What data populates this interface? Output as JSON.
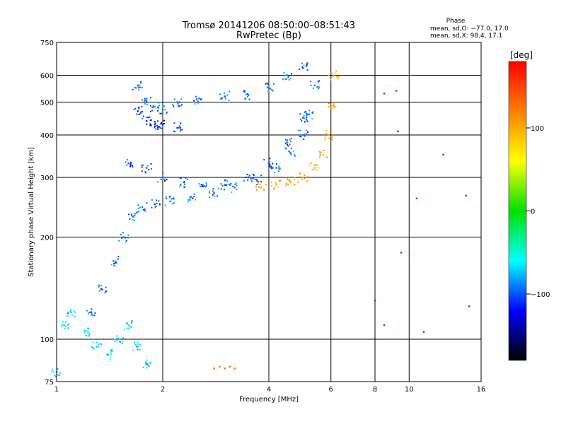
{
  "chart_data": {
    "type": "scatter",
    "title": "Tromsø 20141206 08:50:00–08:51:43",
    "subtitle": "RwPretec (Bp)",
    "xlabel": "Frequency [MHz]",
    "ylabel": "Stationary phase Virtual Height [km]",
    "x_scale": "log2",
    "y_scale": "log",
    "xlim": [
      1,
      16
    ],
    "ylim": [
      75,
      750
    ],
    "x_ticks": [
      1,
      2,
      4,
      6,
      8,
      10,
      16
    ],
    "x_gridlines": [
      2,
      4,
      6,
      8,
      10
    ],
    "y_ticks": [
      75,
      100,
      200,
      300,
      400,
      500,
      600,
      750
    ],
    "y_gridlines": [
      100,
      200,
      300,
      400,
      500,
      600
    ],
    "grid": true,
    "phase_box": {
      "heading": "Phase",
      "line_o": "mean, sd,O: −77.0, 17.0",
      "line_x": "mean, sd,X:  98.4, 17.1"
    },
    "colorbar": {
      "label": "[deg]",
      "range": [
        -180,
        180
      ],
      "ticks": [
        100,
        0,
        -100
      ],
      "tick_labels": [
        "100",
        "0",
        "−100"
      ],
      "colors": [
        "#ff0000",
        "#ff8000",
        "#ffff00",
        "#00e000",
        "#00ffff",
        "#0000ff",
        "#000000"
      ]
    },
    "series": [
      {
        "trace": "o-mode-upper",
        "phase_deg": -95,
        "x": [
          1.7,
          1.8,
          1.9,
          2.0,
          2.2,
          2.5,
          3.0,
          3.5,
          4.0,
          4.5,
          5.0
        ],
        "y": [
          560,
          500,
          485,
          475,
          500,
          510,
          520,
          525,
          550,
          600,
          630
        ]
      },
      {
        "trace": "o-mode-upper-branch",
        "phase_deg": -110,
        "x": [
          1.7,
          1.8,
          1.9,
          2.0,
          2.2
        ],
        "y": [
          470,
          440,
          430,
          430,
          420
        ]
      },
      {
        "trace": "o-mode-lower",
        "phase_deg": -90,
        "x": [
          1.25,
          1.35,
          1.45,
          1.55,
          1.65,
          1.75,
          1.9,
          2.1,
          2.4,
          2.8,
          3.2,
          3.7,
          4.2,
          4.6,
          5.0,
          5.2,
          5.4
        ],
        "y": [
          120,
          140,
          170,
          200,
          230,
          245,
          250,
          255,
          262,
          270,
          280,
          295,
          320,
          355,
          400,
          460,
          560
        ]
      },
      {
        "trace": "o-mode-lower-upper-band",
        "phase_deg": -100,
        "x": [
          1.6,
          1.8,
          2.0,
          2.3,
          2.6,
          3.0,
          3.5,
          4.0,
          4.5,
          5.0
        ],
        "y": [
          330,
          320,
          300,
          290,
          282,
          285,
          300,
          330,
          380,
          450
        ]
      },
      {
        "trace": "x-mode",
        "phase_deg": 100,
        "x": [
          3.8,
          4.2,
          4.6,
          5.0,
          5.4,
          5.7,
          5.9,
          6.0,
          6.1
        ],
        "y": [
          280,
          285,
          292,
          300,
          320,
          350,
          400,
          480,
          600
        ]
      },
      {
        "trace": "low-frequency-scatter",
        "phase_deg": -70,
        "x": [
          1.0,
          1.05,
          1.1,
          1.2,
          1.3,
          1.4,
          1.5,
          1.6,
          1.7,
          1.8
        ],
        "y": [
          80,
          110,
          120,
          105,
          95,
          90,
          100,
          110,
          95,
          85
        ]
      },
      {
        "trace": "e-region",
        "phase_deg": 130,
        "x": [
          2.8,
          2.9,
          3.0,
          3.1,
          3.2
        ],
        "y": [
          82,
          83,
          82,
          83,
          82
        ]
      },
      {
        "trace": "sparse-points",
        "phase_deg": -100,
        "x": [
          8.5,
          9.2,
          9.3,
          9.5,
          12.5,
          10.5,
          14.5,
          8.0,
          8.5,
          14.8,
          11.0
        ],
        "y": [
          530,
          540,
          410,
          180,
          350,
          260,
          265,
          130,
          110,
          125,
          105
        ]
      }
    ]
  }
}
